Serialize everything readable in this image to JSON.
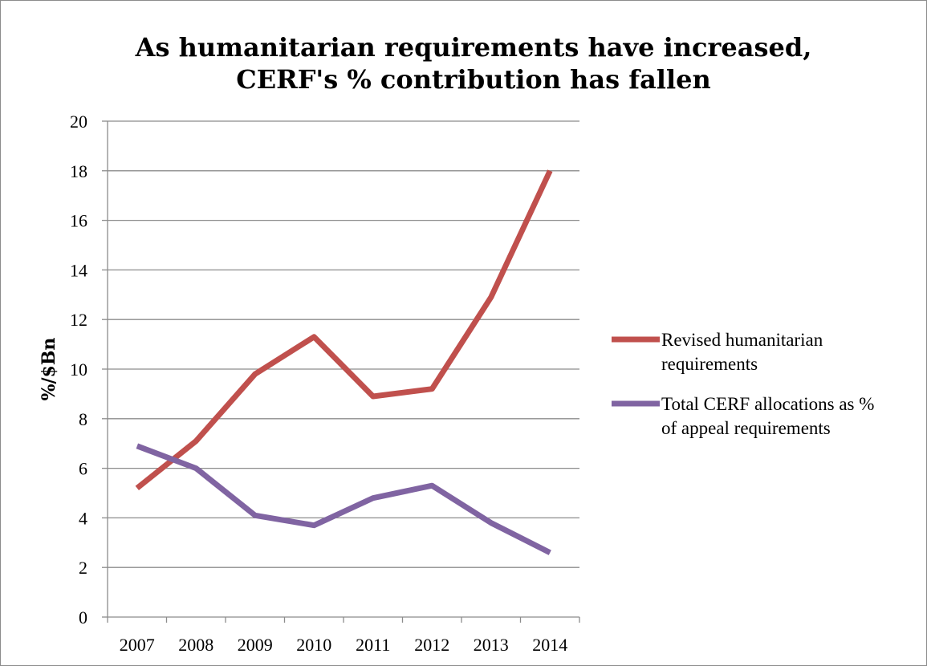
{
  "chart_data": {
    "type": "line",
    "title_lines": [
      "As humanitarian requirements have increased,",
      "CERF's % contribution has fallen"
    ],
    "xlabel": "",
    "ylabel": "%/$Bn",
    "ylim": [
      0,
      20
    ],
    "y_ticks": [
      "0",
      "2",
      "4",
      "6",
      "8",
      "10",
      "12",
      "14",
      "16",
      "18",
      "20"
    ],
    "categories": [
      "2007",
      "2008",
      "2009",
      "2010",
      "2011",
      "2012",
      "2013",
      "2014"
    ],
    "grid": true,
    "legend_position": "right",
    "series": [
      {
        "name_lines": [
          "Revised humanitarian",
          "requirements"
        ],
        "color": "#C0504D",
        "values": [
          5.2,
          7.1,
          9.8,
          11.3,
          8.9,
          9.2,
          12.9,
          18.0
        ]
      },
      {
        "name_lines": [
          "Total CERF allocations as %",
          "of appeal requirements"
        ],
        "color": "#8064A2",
        "values": [
          6.9,
          6.0,
          4.1,
          3.7,
          4.8,
          5.3,
          3.8,
          2.6
        ]
      }
    ]
  }
}
